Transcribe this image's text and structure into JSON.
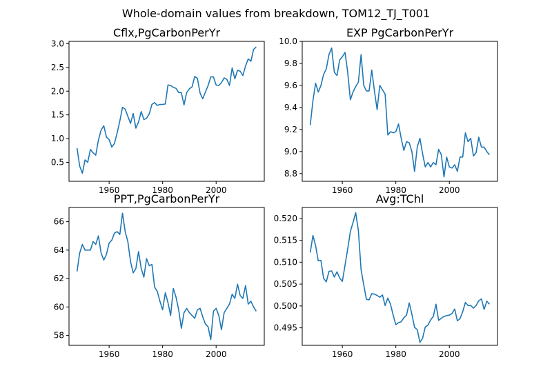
{
  "suptitle": "Whole-domain values from breakdown, TOM12_TJ_T001",
  "colors": {
    "line": "#1f77b4",
    "axes": "#000000",
    "background": "#ffffff"
  },
  "chart_data": [
    {
      "type": "line",
      "title": "Cflx,PgCarbonPerYr",
      "xlabel": "",
      "ylabel": "",
      "xlim": [
        1945,
        2018
      ],
      "ylim": [
        0.1,
        3.05
      ],
      "xticks": [
        1960,
        1980,
        2000
      ],
      "yticks": [
        0.5,
        1.0,
        1.5,
        2.0,
        2.5,
        3.0
      ],
      "ytick_decimals": 1,
      "grid": false,
      "legend": "none",
      "x": [
        1948,
        1949,
        1950,
        1951,
        1952,
        1953,
        1954,
        1955,
        1956,
        1957,
        1958,
        1959,
        1960,
        1961,
        1962,
        1963,
        1964,
        1965,
        1966,
        1967,
        1968,
        1969,
        1970,
        1971,
        1972,
        1973,
        1974,
        1975,
        1976,
        1977,
        1978,
        1979,
        1980,
        1981,
        1982,
        1983,
        1984,
        1985,
        1986,
        1987,
        1988,
        1989,
        1990,
        1991,
        1992,
        1993,
        1994,
        1995,
        1996,
        1997,
        1998,
        1999,
        2000,
        2001,
        2002,
        2003,
        2004,
        2005,
        2006,
        2007,
        2008,
        2009,
        2010,
        2011,
        2012,
        2013,
        2014,
        2015
      ],
      "y": [
        0.8,
        0.42,
        0.27,
        0.55,
        0.5,
        0.77,
        0.7,
        0.65,
        0.97,
        1.18,
        1.27,
        1.03,
        0.98,
        0.82,
        0.9,
        1.12,
        1.37,
        1.66,
        1.62,
        1.47,
        1.32,
        1.53,
        1.22,
        1.35,
        1.57,
        1.4,
        1.43,
        1.52,
        1.72,
        1.76,
        1.7,
        1.72,
        1.72,
        1.73,
        2.13,
        2.12,
        2.08,
        2.06,
        1.97,
        1.97,
        1.71,
        1.97,
        2.05,
        2.09,
        2.31,
        2.27,
        1.96,
        1.84,
        1.98,
        2.12,
        2.3,
        2.3,
        2.13,
        2.12,
        2.18,
        2.28,
        2.25,
        2.12,
        2.49,
        2.26,
        2.44,
        2.42,
        2.33,
        2.53,
        2.68,
        2.63,
        2.88,
        2.93
      ]
    },
    {
      "type": "line",
      "title": "EXP PgCarbonPerYr",
      "xlabel": "",
      "ylabel": "",
      "xlim": [
        1945,
        2018
      ],
      "ylim": [
        8.73,
        10.0
      ],
      "xticks": [
        1960,
        1980,
        2000
      ],
      "yticks": [
        8.8,
        9.0,
        9.2,
        9.4,
        9.6,
        9.8,
        10.0
      ],
      "ytick_decimals": 1,
      "grid": false,
      "legend": "none",
      "x": [
        1948,
        1949,
        1950,
        1951,
        1952,
        1953,
        1954,
        1955,
        1956,
        1957,
        1958,
        1959,
        1960,
        1961,
        1962,
        1963,
        1964,
        1965,
        1966,
        1967,
        1968,
        1969,
        1970,
        1971,
        1972,
        1973,
        1974,
        1975,
        1976,
        1977,
        1978,
        1979,
        1980,
        1981,
        1982,
        1983,
        1984,
        1985,
        1986,
        1987,
        1988,
        1989,
        1990,
        1991,
        1992,
        1993,
        1994,
        1995,
        1996,
        1997,
        1998,
        1999,
        2000,
        2001,
        2002,
        2003,
        2004,
        2005,
        2006,
        2007,
        2008,
        2009,
        2010,
        2011,
        2012,
        2013,
        2014,
        2015
      ],
      "y": [
        9.24,
        9.46,
        9.62,
        9.54,
        9.6,
        9.7,
        9.75,
        9.88,
        9.94,
        9.72,
        9.69,
        9.83,
        9.86,
        9.9,
        9.72,
        9.47,
        9.54,
        9.59,
        9.63,
        9.88,
        9.6,
        9.55,
        9.55,
        9.74,
        9.55,
        9.38,
        9.6,
        9.56,
        9.52,
        9.15,
        9.18,
        9.17,
        9.18,
        9.25,
        9.12,
        9.01,
        9.09,
        9.08,
        9.0,
        8.82,
        9.04,
        9.12,
        8.98,
        8.86,
        8.9,
        8.86,
        8.9,
        8.88,
        9.02,
        8.97,
        8.77,
        8.95,
        8.86,
        8.85,
        8.88,
        8.82,
        8.95,
        8.95,
        9.17,
        9.09,
        9.12,
        8.96,
        8.99,
        9.13,
        9.04,
        9.04,
        9.0,
        8.97
      ]
    },
    {
      "type": "line",
      "title": "PPT,PgCarbonPerYr",
      "xlabel": "",
      "ylabel": "",
      "xlim": [
        1945,
        2018
      ],
      "ylim": [
        57.3,
        67.0
      ],
      "xticks": [
        1960,
        1980,
        2000
      ],
      "yticks": [
        58,
        60,
        62,
        64,
        66
      ],
      "ytick_decimals": 0,
      "grid": false,
      "legend": "none",
      "x": [
        1948,
        1949,
        1950,
        1951,
        1952,
        1953,
        1954,
        1955,
        1956,
        1957,
        1958,
        1959,
        1960,
        1961,
        1962,
        1963,
        1964,
        1965,
        1966,
        1967,
        1968,
        1969,
        1970,
        1971,
        1972,
        1973,
        1974,
        1975,
        1976,
        1977,
        1978,
        1979,
        1980,
        1981,
        1982,
        1983,
        1984,
        1985,
        1986,
        1987,
        1988,
        1989,
        1990,
        1991,
        1992,
        1993,
        1994,
        1995,
        1996,
        1997,
        1998,
        1999,
        2000,
        2001,
        2002,
        2003,
        2004,
        2005,
        2006,
        2007,
        2008,
        2009,
        2010,
        2011,
        2012,
        2013,
        2014,
        2015
      ],
      "y": [
        62.5,
        63.8,
        64.4,
        64.0,
        64.0,
        64.0,
        64.6,
        64.4,
        65.0,
        63.8,
        63.3,
        63.7,
        64.5,
        64.7,
        65.2,
        65.3,
        65.1,
        66.6,
        65.3,
        64.6,
        63.2,
        62.4,
        62.7,
        63.9,
        62.7,
        62.1,
        63.4,
        62.9,
        63.0,
        61.4,
        61.1,
        60.4,
        59.8,
        61.0,
        60.3,
        59.4,
        61.3,
        60.7,
        59.8,
        58.5,
        59.6,
        59.9,
        59.6,
        59.4,
        59.2,
        59.8,
        59.9,
        59.3,
        58.8,
        58.6,
        57.7,
        59.7,
        59.9,
        59.4,
        58.4,
        59.6,
        59.9,
        60.2,
        60.9,
        60.6,
        61.6,
        60.8,
        60.6,
        61.5,
        60.2,
        60.4,
        60.0,
        59.7
      ]
    },
    {
      "type": "line",
      "title": "Avg:TChl",
      "xlabel": "",
      "ylabel": "",
      "xlim": [
        1945,
        2018
      ],
      "ylim": [
        0.491,
        0.5225
      ],
      "xticks": [
        1960,
        1980,
        2000
      ],
      "yticks": [
        0.495,
        0.5,
        0.505,
        0.51,
        0.515,
        0.52
      ],
      "ytick_decimals": 3,
      "grid": false,
      "legend": "none",
      "x": [
        1948,
        1949,
        1950,
        1951,
        1952,
        1953,
        1954,
        1955,
        1956,
        1957,
        1958,
        1959,
        1960,
        1961,
        1962,
        1963,
        1964,
        1965,
        1966,
        1967,
        1968,
        1969,
        1970,
        1971,
        1972,
        1973,
        1974,
        1975,
        1976,
        1977,
        1978,
        1979,
        1980,
        1981,
        1982,
        1983,
        1984,
        1985,
        1986,
        1987,
        1988,
        1989,
        1990,
        1991,
        1992,
        1993,
        1994,
        1995,
        1996,
        1997,
        1998,
        1999,
        2000,
        2001,
        2002,
        2003,
        2004,
        2005,
        2006,
        2007,
        2008,
        2009,
        2010,
        2011,
        2012,
        2013,
        2014,
        2015
      ],
      "y": [
        0.5122,
        0.5161,
        0.5138,
        0.5103,
        0.5104,
        0.5063,
        0.5055,
        0.5079,
        0.508,
        0.5066,
        0.5078,
        0.5064,
        0.5056,
        0.5093,
        0.513,
        0.517,
        0.5191,
        0.5213,
        0.5172,
        0.5083,
        0.5048,
        0.5015,
        0.5014,
        0.5028,
        0.5027,
        0.5024,
        0.502,
        0.5025,
        0.5001,
        0.5018,
        0.5004,
        0.4979,
        0.4957,
        0.4962,
        0.4964,
        0.4973,
        0.4979,
        0.5007,
        0.4981,
        0.4951,
        0.4946,
        0.4917,
        0.4926,
        0.4952,
        0.4956,
        0.4968,
        0.4976,
        0.5004,
        0.4967,
        0.4972,
        0.4976,
        0.4978,
        0.4979,
        0.4983,
        0.4993,
        0.4966,
        0.4971,
        0.4987,
        0.5008,
        0.5001,
        0.5001,
        0.4995,
        0.5001,
        0.5012,
        0.5016,
        0.4992,
        0.5011,
        0.5004
      ]
    }
  ]
}
